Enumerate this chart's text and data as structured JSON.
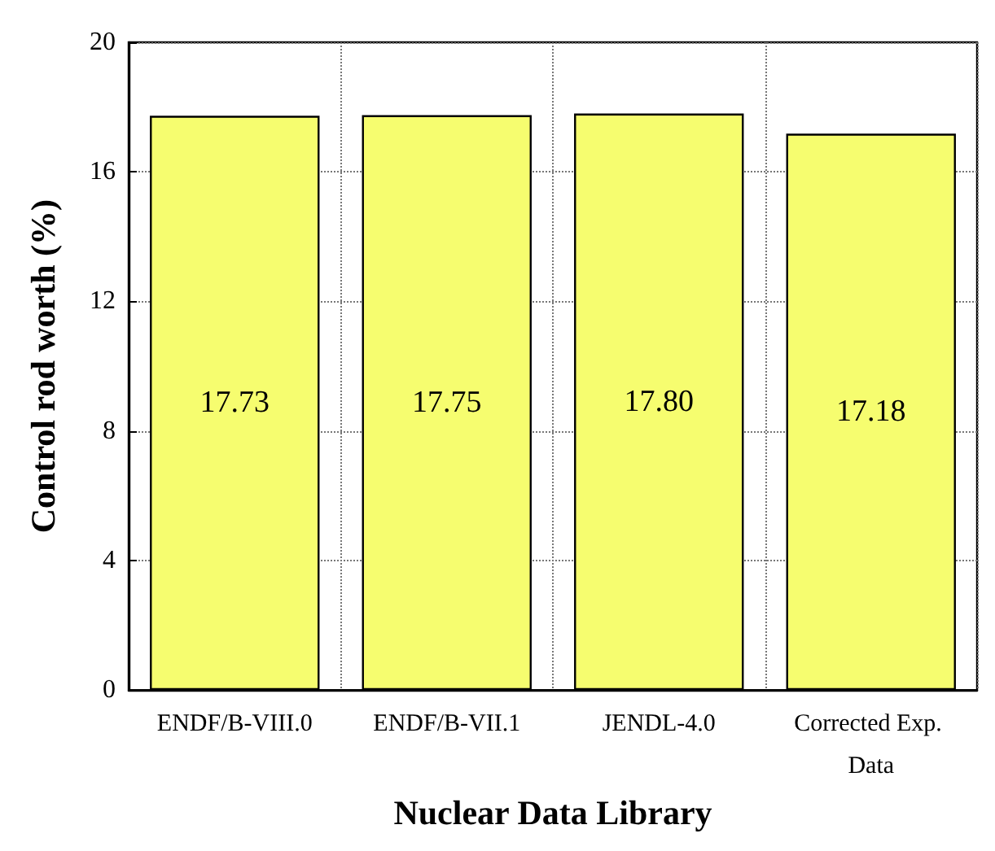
{
  "chart_data": {
    "type": "bar",
    "xlabel": "Nuclear Data Library",
    "ylabel": "Control rod worth (%)",
    "categories": [
      "ENDF/B-VIII.0",
      "ENDF/B-VII.1",
      "JENDL-4.0",
      "Corrected Exp. Data"
    ],
    "values": [
      17.73,
      17.75,
      17.8,
      17.18
    ],
    "value_labels": [
      "17.73",
      "17.75",
      "17.80",
      "17.18"
    ],
    "color": "#f6fd6f",
    "ylim": [
      0,
      20
    ],
    "yticks": [
      0,
      4,
      8,
      12,
      16,
      20
    ],
    "grid": true,
    "data_labels": true
  }
}
